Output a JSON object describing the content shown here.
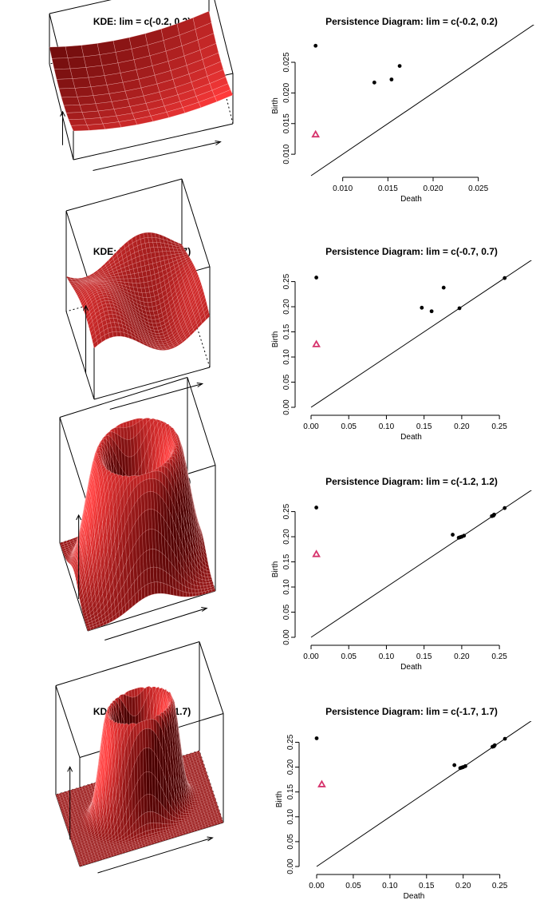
{
  "figure": {
    "colors": {
      "surface_base": "#8a0000",
      "surface_light": "#ff3a3a",
      "surface_dark": "#4a0000",
      "grid": "#ffd0d0",
      "point": "#000000",
      "triangle": "#d6336c"
    }
  },
  "chart_data": [
    {
      "type": "surface",
      "title": "KDE: lim = c(-0.2, 0.2)",
      "surface": "bowl"
    },
    {
      "type": "scatter",
      "title": "Persistence Diagram: lim = c(-0.2, 0.2)",
      "xlabel": "Death",
      "ylabel": "Birth",
      "xlim": [
        0.0065,
        0.029
      ],
      "ylim": [
        0.0065,
        0.0293
      ],
      "xticks": [
        "0.010",
        "0.015",
        "0.020",
        "0.025"
      ],
      "yticks": [
        "0.010",
        "0.015",
        "0.020",
        "0.025"
      ],
      "diagonal": true,
      "points": [
        [
          0.007,
          0.0277
        ],
        [
          0.0135,
          0.0217
        ],
        [
          0.0154,
          0.0222
        ],
        [
          0.0163,
          0.0244
        ]
      ],
      "triangles": [
        [
          0.007,
          0.0132
        ]
      ]
    },
    {
      "type": "surface",
      "title": "KDE: lim = c(-0.7, 0.7)",
      "surface": "wave"
    },
    {
      "type": "scatter",
      "title": "Persistence Diagram: lim = c(-0.7, 0.7)",
      "xlabel": "Death",
      "ylabel": "Birth",
      "xlim": [
        0,
        0.27
      ],
      "ylim": [
        0,
        0.27
      ],
      "xticks": [
        "0.00",
        "0.05",
        "0.10",
        "0.15",
        "0.20",
        "0.25"
      ],
      "yticks": [
        "0.00",
        "0.05",
        "0.10",
        "0.15",
        "0.20",
        "0.25"
      ],
      "diagonal": true,
      "points": [
        [
          0.007,
          0.258
        ],
        [
          0.147,
          0.198
        ],
        [
          0.16,
          0.191
        ],
        [
          0.176,
          0.238
        ],
        [
          0.197,
          0.197
        ],
        [
          0.257,
          0.257
        ]
      ],
      "triangles": [
        [
          0.007,
          0.125
        ]
      ]
    },
    {
      "type": "surface",
      "title": "KDE: lim = c(-1.2, 1.2)",
      "surface": "ring"
    },
    {
      "type": "scatter",
      "title": "Persistence Diagram: lim = c(-1.2, 1.2)",
      "xlabel": "Death",
      "ylabel": "Birth",
      "xlim": [
        0,
        0.27
      ],
      "ylim": [
        0,
        0.27
      ],
      "xticks": [
        "0.00",
        "0.05",
        "0.10",
        "0.15",
        "0.20",
        "0.25"
      ],
      "yticks": [
        "0.00",
        "0.05",
        "0.10",
        "0.15",
        "0.20",
        "0.25"
      ],
      "diagonal": true,
      "points": [
        [
          0.007,
          0.258
        ],
        [
          0.188,
          0.204
        ],
        [
          0.196,
          0.198
        ],
        [
          0.198,
          0.199
        ],
        [
          0.2,
          0.2
        ],
        [
          0.203,
          0.202
        ],
        [
          0.24,
          0.241
        ],
        [
          0.242,
          0.242
        ],
        [
          0.243,
          0.244
        ],
        [
          0.257,
          0.257
        ]
      ],
      "triangles": [
        [
          0.007,
          0.165
        ]
      ]
    },
    {
      "type": "surface",
      "title": "KDE: lim = c(-1.7, 1.7)",
      "surface": "ring-flat"
    },
    {
      "type": "scatter",
      "title": "Persistence Diagram: lim = c(-1.7, 1.7)",
      "xlabel": "Death",
      "ylabel": "Birth",
      "xlim": [
        0,
        0.27
      ],
      "ylim": [
        0,
        0.27
      ],
      "xticks": [
        "0.00",
        "0.05",
        "0.10",
        "0.15",
        "0.20",
        "0.25"
      ],
      "yticks": [
        "0.00",
        "0.05",
        "0.10",
        "0.15",
        "0.20",
        "0.25"
      ],
      "diagonal": true,
      "points": [
        [
          0.0,
          0.258
        ],
        [
          0.188,
          0.204
        ],
        [
          0.196,
          0.198
        ],
        [
          0.198,
          0.199
        ],
        [
          0.2,
          0.2
        ],
        [
          0.203,
          0.202
        ],
        [
          0.24,
          0.241
        ],
        [
          0.242,
          0.242
        ],
        [
          0.243,
          0.244
        ],
        [
          0.257,
          0.257
        ]
      ],
      "triangles": [
        [
          0.007,
          0.165
        ]
      ]
    }
  ]
}
